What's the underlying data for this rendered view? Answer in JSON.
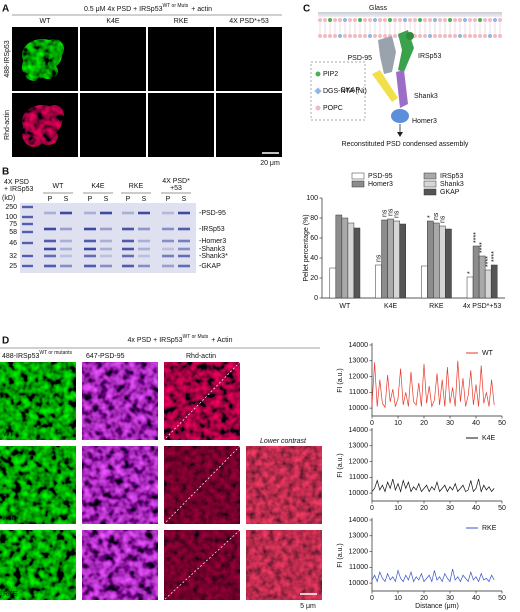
{
  "panels": {
    "A": {
      "letter": "A",
      "title": {
        "pre": "0.5 μM 4x PSD + IRSp53",
        "sup": "WT or Muts",
        "post": "+ actin"
      },
      "columns": [
        "WT",
        "K4E",
        "RKE",
        "4X PSD*+53"
      ],
      "rows": [
        "488-IRSp53",
        "Rhd-actin"
      ],
      "scale_bar": "20 μm"
    },
    "B": {
      "letter": "B",
      "gel": {
        "header_lines": [
          "4X PSD",
          "+ IRSp53"
        ],
        "lanes": [
          "WT",
          "K4E",
          "RKE"
        ],
        "last_lane_lines": [
          "4X PSD*",
          "+53"
        ],
        "fractions": [
          "P",
          "S",
          "P",
          "S",
          "P",
          "S",
          "P",
          "S"
        ],
        "kd_unit": "(kD)",
        "markers": [
          250,
          100,
          75,
          58,
          46,
          32,
          25
        ],
        "bands": [
          "-PSD-95",
          "-IRSp53",
          "-Homer3",
          "-Shank3",
          "-Shank3*",
          "-GKAP"
        ]
      }
    },
    "C": {
      "letter": "C",
      "glass": "Glass",
      "legend": [
        "PIP2",
        "DGS-NTA (Ni)",
        "POPC"
      ],
      "proteins": [
        "PSD-95",
        "IRSp53",
        "GKAP",
        "Shank3",
        "Homer3"
      ],
      "caption": "Reconstituted PSD condensed assembly"
    },
    "D": {
      "letter": "D",
      "title": {
        "pre": "4x PSD + IRSp53",
        "sup": "WT or Muts",
        "post": "+ Actin"
      },
      "channel_green": {
        "pre": "488-IRSp53",
        "sup": "WT or mutants"
      },
      "channels": [
        "647-PSD-95",
        "Rhd-actin"
      ],
      "lower_contrast": "Lower contrast",
      "rows": [
        "WT",
        "K4E",
        "RKE"
      ],
      "scale_bar": "5 μm"
    }
  },
  "chart_data": [
    {
      "type": "bar",
      "ylabel": "Pellet percentage (%)",
      "categories": [
        "WT",
        "K4E",
        "RKE",
        "4x PSD*+53"
      ],
      "ylim": [
        0,
        100
      ],
      "yticks": [
        0,
        20,
        40,
        60,
        80,
        100
      ],
      "legend": "top",
      "series": [
        {
          "name": "PSD-95",
          "color": "#ffffff",
          "values": [
            30,
            33,
            32,
            21
          ],
          "significance": [
            null,
            "ns",
            null,
            "*"
          ]
        },
        {
          "name": "Homer3",
          "color": "#8c8c8c",
          "values": [
            83,
            78,
            77,
            52
          ],
          "significance": [
            null,
            "ns",
            "*",
            "****"
          ]
        },
        {
          "name": "IRSp53",
          "color": "#a9a9a9",
          "values": [
            80,
            79,
            75,
            42
          ],
          "significance": [
            null,
            "ns",
            "ns",
            "****"
          ]
        },
        {
          "name": "Shank3",
          "color": "#d6d6d6",
          "values": [
            75,
            77,
            72,
            28
          ],
          "significance": [
            null,
            "ns",
            "ns",
            "****"
          ]
        },
        {
          "name": "GKAP",
          "color": "#555555",
          "values": [
            70,
            74,
            69,
            33
          ],
          "significance": [
            null,
            null,
            null,
            "****"
          ]
        }
      ]
    },
    {
      "type": "line",
      "ylabel": "FI (a.u.)",
      "xlim": [
        0,
        50
      ],
      "xticks": [
        0,
        10,
        20,
        30,
        40,
        50
      ],
      "ylim": [
        9500,
        14000
      ],
      "yticks": [
        10000,
        11000,
        12000,
        13000,
        14000
      ],
      "x": [
        0,
        1,
        2,
        3,
        4,
        5,
        6,
        7,
        8,
        9,
        10,
        11,
        12,
        13,
        14,
        15,
        16,
        17,
        18,
        19,
        20,
        21,
        22,
        23,
        24,
        25,
        26,
        27,
        28,
        29,
        30,
        31,
        32,
        33,
        34,
        35,
        36,
        37,
        38,
        39,
        40,
        41,
        42,
        43,
        44,
        45,
        46,
        47
      ],
      "series": [
        {
          "name": "WT",
          "color": "#e8392a",
          "values": [
            10200,
            12900,
            10100,
            11800,
            10300,
            10050,
            12100,
            10400,
            11200,
            10100,
            10600,
            12500,
            10200,
            11000,
            10100,
            12300,
            10400,
            10200,
            11600,
            10100,
            12800,
            10300,
            11400,
            10100,
            10500,
            12200,
            10200,
            11800,
            10100,
            12600,
            10300,
            11300,
            10100,
            13000,
            10400,
            11900,
            10100,
            10800,
            12400,
            10200,
            11500,
            10100,
            12700,
            10300,
            11000,
            10100,
            11800,
            10200
          ]
        }
      ]
    },
    {
      "type": "line",
      "ylabel": "FI (a.u.)",
      "xlim": [
        0,
        50
      ],
      "xticks": [
        0,
        10,
        20,
        30,
        40,
        50
      ],
      "ylim": [
        9500,
        14000
      ],
      "yticks": [
        10000,
        11000,
        12000,
        13000,
        14000
      ],
      "x": [
        0,
        1,
        2,
        3,
        4,
        5,
        6,
        7,
        8,
        9,
        10,
        11,
        12,
        13,
        14,
        15,
        16,
        17,
        18,
        19,
        20,
        21,
        22,
        23,
        24,
        25,
        26,
        27,
        28,
        29,
        30,
        31,
        32,
        33,
        34,
        35,
        36,
        37,
        38,
        39,
        40,
        41,
        42,
        43,
        44,
        45,
        46,
        47
      ],
      "series": [
        {
          "name": "K4E",
          "color": "#111111",
          "values": [
            10100,
            10300,
            10800,
            10200,
            10500,
            10100,
            10700,
            10300,
            10900,
            10200,
            10600,
            10100,
            10800,
            10300,
            10700,
            10100,
            10400,
            10200,
            10600,
            10100,
            10300,
            10500,
            10100,
            10400,
            10200,
            10700,
            10100,
            10300,
            10500,
            10100,
            10400,
            10200,
            10600,
            10100,
            10300,
            10500,
            10100,
            10200,
            10800,
            10100,
            10300,
            10900,
            10100,
            10500,
            10200,
            10400,
            10100,
            10300
          ]
        }
      ]
    },
    {
      "type": "line",
      "ylabel": "FI (a.u.)",
      "xlabel": "Distance (μm)",
      "xlim": [
        0,
        50
      ],
      "xticks": [
        0,
        10,
        20,
        30,
        40,
        50
      ],
      "ylim": [
        9500,
        14000
      ],
      "yticks": [
        10000,
        11000,
        12000,
        13000,
        14000
      ],
      "x": [
        0,
        1,
        2,
        3,
        4,
        5,
        6,
        7,
        8,
        9,
        10,
        11,
        12,
        13,
        14,
        15,
        16,
        17,
        18,
        19,
        20,
        21,
        22,
        23,
        24,
        25,
        26,
        27,
        28,
        29,
        30,
        31,
        32,
        33,
        34,
        35,
        36,
        37,
        38,
        39,
        40,
        41,
        42,
        43,
        44,
        45,
        46,
        47
      ],
      "series": [
        {
          "name": "RKE",
          "color": "#3a56c8",
          "values": [
            10200,
            10500,
            10100,
            10700,
            10300,
            10100,
            10600,
            10200,
            10400,
            10100,
            10800,
            10300,
            10100,
            10500,
            10200,
            10700,
            10100,
            10400,
            10200,
            10600,
            10100,
            10300,
            10500,
            10100,
            10800,
            10200,
            10400,
            10100,
            10600,
            10300,
            10100,
            10900,
            10200,
            10400,
            10100,
            10500,
            10300,
            10100,
            10700,
            10200,
            10400,
            10100,
            10600,
            10200,
            10300,
            10100,
            10500,
            10200
          ]
        }
      ]
    }
  ]
}
